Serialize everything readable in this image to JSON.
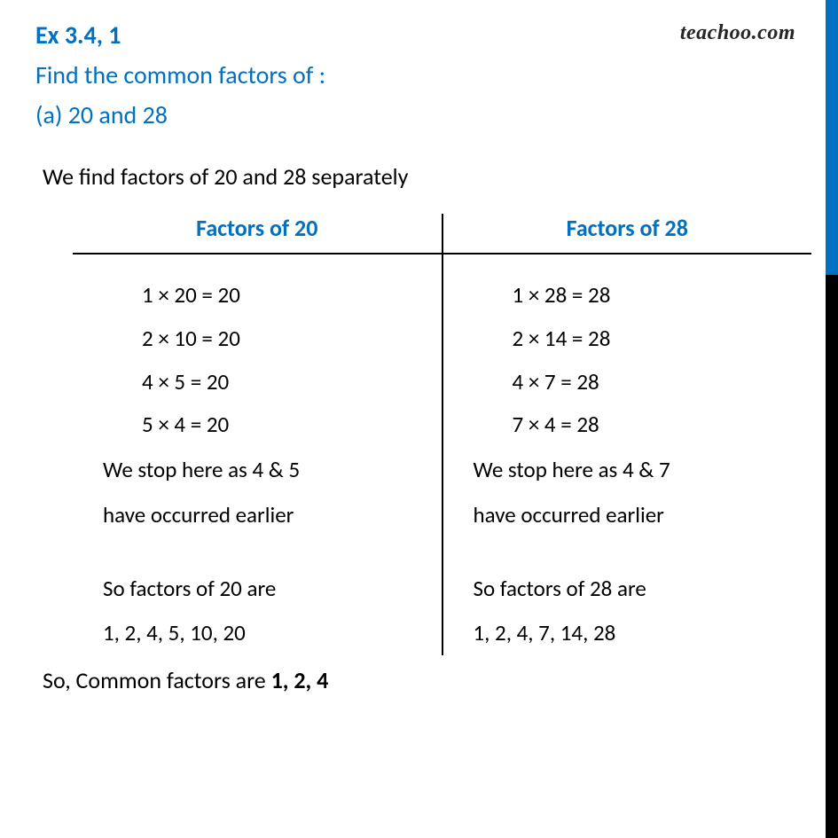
{
  "watermark": "teachoo.com",
  "header": {
    "ex": "Ex 3.4, 1",
    "question": "Find the common factors of :",
    "part": "(a) 20 and 28"
  },
  "intro": "We find factors of 20 and 28 separately",
  "columns": {
    "left": {
      "title": "Factors of 20",
      "calc": [
        "1 × 20 = 20",
        "2 × 10 = 20",
        "4 × 5 = 20",
        "5 × 4 = 20"
      ],
      "note": [
        "We stop here as 4 & 5",
        "have occurred earlier"
      ],
      "result": [
        "So factors of 20 are",
        "1, 2, 4, 5, 10, 20"
      ]
    },
    "right": {
      "title": "Factors of 28",
      "calc": [
        "1 × 28 = 28",
        "2 × 14 = 28",
        "4 × 7 = 28",
        "7 × 4 = 28"
      ],
      "note": [
        "We stop here as 4 & 7",
        "have occurred earlier"
      ],
      "result": [
        "So factors of 28 are",
        "1, 2, 4, 7, 14, 28"
      ]
    }
  },
  "conclusion": {
    "prefix": "So, Common factors are ",
    "answer": "1, 2, 4"
  },
  "style": {
    "accent_color": "#0070c0",
    "text_color": "#000000",
    "background_color": "#ffffff",
    "right_stripe_top_color": "#0070c0",
    "right_stripe_bottom_color": "#000000",
    "heading_fontsize": 28,
    "body_fontsize": 26,
    "divider_color": "#000000"
  }
}
